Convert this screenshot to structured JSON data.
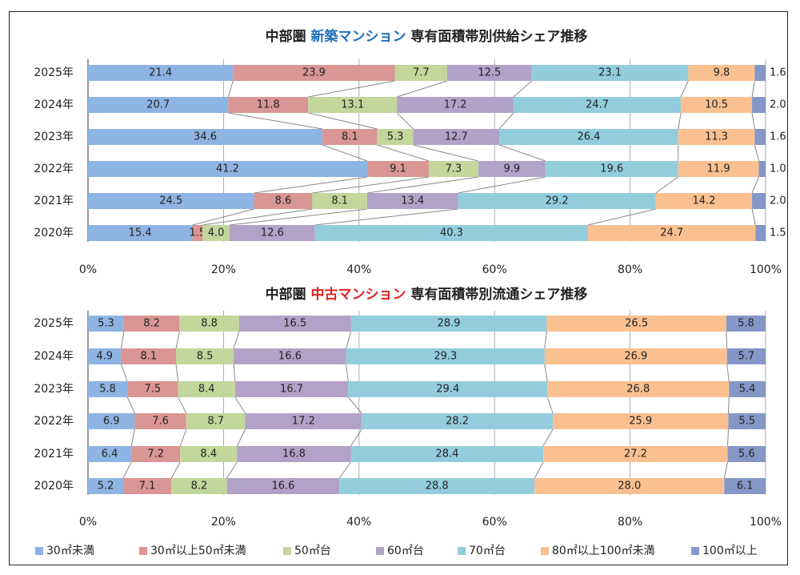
{
  "colors": [
    "#8eb4e3",
    "#d99694",
    "#c3d69b",
    "#b3a2c7",
    "#93cddd",
    "#fac090",
    "#8497c7"
  ],
  "legend": [
    "30㎡未満",
    "30㎡以上50㎡未満",
    "50㎡台",
    "60㎡台",
    "70㎡台",
    "80㎡以上100㎡未満",
    "100㎡以上"
  ],
  "chart_data": [
    {
      "type": "bar",
      "stacked": true,
      "orientation": "horizontal",
      "title_prefix": "中部圏",
      "title_highlight": "新築マンション",
      "title_highlight_color": "#1f6fbf",
      "title_suffix": "専有面積帯別供給シェア推移",
      "categories": [
        "2025年",
        "2024年",
        "2023年",
        "2022年",
        "2021年",
        "2020年"
      ],
      "series": [
        {
          "name": "30㎡未満",
          "values": [
            21.4,
            20.7,
            34.6,
            41.2,
            24.5,
            15.4
          ]
        },
        {
          "name": "30㎡以上50㎡未満",
          "values": [
            23.9,
            11.8,
            8.1,
            9.1,
            8.6,
            1.5
          ]
        },
        {
          "name": "50㎡台",
          "values": [
            7.7,
            13.1,
            5.3,
            7.3,
            8.1,
            4.0
          ]
        },
        {
          "name": "60㎡台",
          "values": [
            12.5,
            17.2,
            12.7,
            9.9,
            13.4,
            12.6
          ]
        },
        {
          "name": "70㎡台",
          "values": [
            23.1,
            24.7,
            26.4,
            19.6,
            29.2,
            40.3
          ]
        },
        {
          "name": "80㎡以上100㎡未満",
          "values": [
            9.8,
            10.5,
            11.3,
            11.9,
            14.2,
            24.7
          ]
        },
        {
          "name": "100㎡以上",
          "values": [
            1.6,
            2.0,
            1.6,
            1.0,
            2.0,
            1.5
          ]
        }
      ],
      "xticks": [
        "0%",
        "20%",
        "40%",
        "60%",
        "80%",
        "100%"
      ],
      "xlim": [
        0,
        100
      ]
    },
    {
      "type": "bar",
      "stacked": true,
      "orientation": "horizontal",
      "title_prefix": "中部圏",
      "title_highlight": "中古マンション",
      "title_highlight_color": "#e02020",
      "title_suffix": "専有面積帯別流通シェア推移",
      "categories": [
        "2025年",
        "2024年",
        "2023年",
        "2022年",
        "2021年",
        "2020年"
      ],
      "series": [
        {
          "name": "30㎡未満",
          "values": [
            5.3,
            4.9,
            5.8,
            6.9,
            6.4,
            5.2
          ]
        },
        {
          "name": "30㎡以上50㎡未満",
          "values": [
            8.2,
            8.1,
            7.5,
            7.6,
            7.2,
            7.1
          ]
        },
        {
          "name": "50㎡台",
          "values": [
            8.8,
            8.5,
            8.4,
            8.7,
            8.4,
            8.2
          ]
        },
        {
          "name": "60㎡台",
          "values": [
            16.5,
            16.6,
            16.7,
            17.2,
            16.8,
            16.6
          ]
        },
        {
          "name": "70㎡台",
          "values": [
            28.9,
            29.3,
            29.4,
            28.2,
            28.4,
            28.8
          ]
        },
        {
          "name": "80㎡以上100㎡未満",
          "values": [
            26.5,
            26.9,
            26.8,
            25.9,
            27.2,
            28.0
          ]
        },
        {
          "name": "100㎡以上",
          "values": [
            5.8,
            5.7,
            5.4,
            5.5,
            5.6,
            6.1
          ]
        }
      ],
      "xticks": [
        "0%",
        "20%",
        "40%",
        "60%",
        "80%",
        "100%"
      ],
      "xlim": [
        0,
        100
      ]
    }
  ]
}
